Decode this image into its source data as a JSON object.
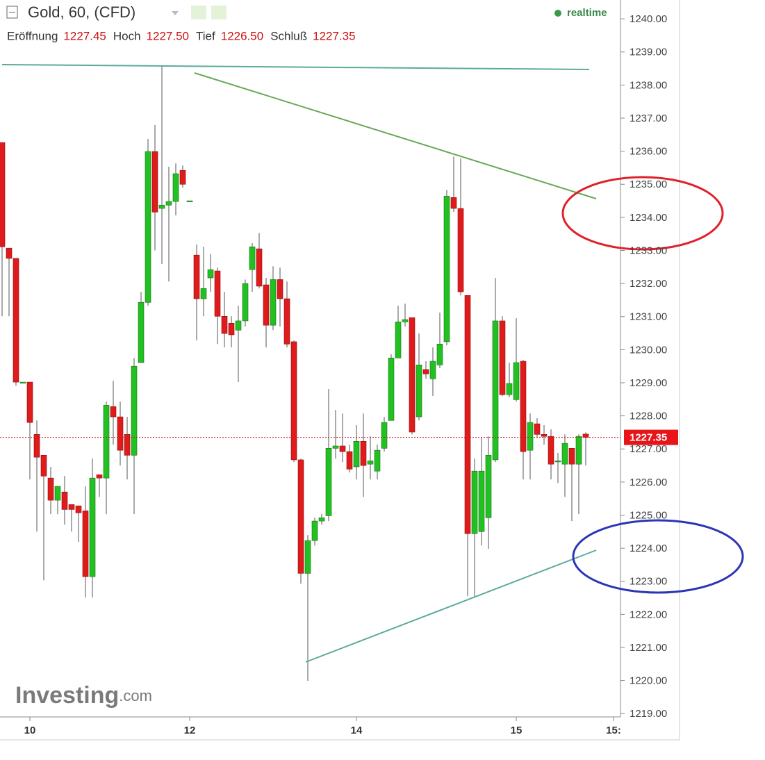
{
  "chart_data": {
    "type": "candlestick",
    "title": "Gold, 60, (CFD)",
    "status": "realtime",
    "ohlc_legend": [
      {
        "name": "Eröffnung",
        "value": 1227.45,
        "label": "1227.45"
      },
      {
        "name": "Hoch",
        "value": 1227.5,
        "label": "1227.50"
      },
      {
        "name": "Tief",
        "value": 1226.5,
        "label": "1226.50"
      },
      {
        "name": "Schluß",
        "value": 1227.35,
        "label": "1227.35"
      }
    ],
    "logo": [
      "Investing",
      ".com"
    ],
    "colors": {
      "up": "#22c122",
      "down": "#e01b1b"
    },
    "open": [
      1236.26,
      1233.07,
      1232.76,
      1229.02,
      1229.02,
      1227.44,
      1226.81,
      1226.12,
      1225.45,
      1225.7,
      1225.32,
      1225.28,
      1225.13,
      1223.14,
      1226.22,
      1226.12,
      1228.28,
      1227.97,
      1227.44,
      1226.81,
      1229.61,
      1231.43,
      1235.99,
      1234.27,
      1234.37,
      1234.48,
      1235.42,
      1234.5,
      1232.86,
      1231.54,
      1232.17,
      1232.38,
      1231.01,
      1230.8,
      1230.59,
      1230.87,
      1232.42,
      1233.05,
      1231.96,
      1230.74,
      1232.12,
      1231.54,
      1230.24,
      1226.67,
      1223.24,
      1224.23,
      1224.82,
      1224.98,
      1227.02,
      1227.09,
      1226.92,
      1226.46,
      1227.23,
      1226.54,
      1226.33,
      1227.02,
      1227.86,
      1229.75,
      1230.84,
      1230.97,
      1227.97,
      1229.4,
      1229.12,
      1229.54,
      1230.24,
      1234.6,
      1234.27,
      1231.64,
      1224.44,
      1224.5,
      1224.92,
      1226.67,
      1230.87,
      1228.64,
      1228.49,
      1229.65,
      1226.96,
      1227.76,
      1227.44,
      1227.38,
      1226.64,
      1226.54,
      1227.02,
      1226.54,
      1227.45
    ],
    "high": [
      1236.26,
      1233.07,
      1232.76,
      1229.02,
      1229.02,
      1227.86,
      1226.81,
      1226.46,
      1225.87,
      1226.18,
      1225.32,
      1225.28,
      1225.87,
      1226.71,
      1226.22,
      1228.43,
      1229.06,
      1228.43,
      1227.97,
      1229.75,
      1231.75,
      1236.37,
      1236.79,
      1238.57,
      1235.53,
      1235.63,
      1235.57,
      1234.5,
      1233.18,
      1233.11,
      1232.9,
      1232.48,
      1231.75,
      1231.01,
      1231.33,
      1232.12,
      1233.22,
      1233.53,
      1232.17,
      1232.52,
      1232.48,
      1232.06,
      1230.28,
      1226.71,
      1224.4,
      1224.92,
      1225.03,
      1228.81,
      1228.18,
      1228.07,
      1227.13,
      1227.72,
      1228.07,
      1227.38,
      1227.13,
      1227.97,
      1229.86,
      1231.33,
      1231.39,
      1230.97,
      1230.49,
      1229.65,
      1230.07,
      1231.12,
      1234.83,
      1235.84,
      1235.78,
      1231.64,
      1226.71,
      1227.34,
      1227.38,
      1232.17,
      1231.01,
      1229.61,
      1230.95,
      1229.69,
      1228.07,
      1227.93,
      1227.72,
      1227.59,
      1226.88,
      1227.44,
      1227.02,
      1227.44,
      1227.5
    ],
    "low": [
      1231.01,
      1231.01,
      1228.91,
      1229.02,
      1226.08,
      1224.5,
      1223.03,
      1225.03,
      1225.03,
      1224.71,
      1224.5,
      1224.19,
      1222.51,
      1222.51,
      1225.55,
      1225.03,
      1227.13,
      1226.5,
      1226.08,
      1225.03,
      1229.61,
      1231.33,
      1233.0,
      1232.59,
      1232.06,
      1234.06,
      1234.9,
      1234.5,
      1230.28,
      1231.01,
      1231.75,
      1230.17,
      1230.07,
      1230.07,
      1229.02,
      1230.7,
      1231.75,
      1231.85,
      1230.07,
      1230.59,
      1230.7,
      1230.07,
      1226.6,
      1222.93,
      1219.99,
      1224.08,
      1224.71,
      1224.82,
      1226.71,
      1226.6,
      1226.29,
      1226.08,
      1225.55,
      1226.08,
      1226.08,
      1226.92,
      1227.86,
      1229.75,
      1230.7,
      1227.44,
      1227.86,
      1229.12,
      1228.6,
      1229.44,
      1230.13,
      1234.16,
      1231.64,
      1222.55,
      1222.51,
      1224.08,
      1223.98,
      1226.6,
      1228.6,
      1228.56,
      1228.43,
      1226.08,
      1226.08,
      1227.34,
      1227.13,
      1226.08,
      1225.97,
      1225.55,
      1224.82,
      1225.03,
      1226.5
    ],
    "close": [
      1233.11,
      1232.76,
      1229.02,
      1229.02,
      1227.8,
      1226.75,
      1226.18,
      1225.45,
      1225.87,
      1225.17,
      1225.17,
      1225.07,
      1223.14,
      1226.12,
      1226.12,
      1228.32,
      1227.97,
      1226.96,
      1226.81,
      1229.5,
      1231.43,
      1235.99,
      1234.16,
      1234.37,
      1234.48,
      1235.32,
      1235.0,
      1234.5,
      1231.54,
      1231.85,
      1232.42,
      1231.01,
      1230.49,
      1230.45,
      1230.87,
      1232.0,
      1233.11,
      1231.92,
      1230.74,
      1232.12,
      1231.54,
      1230.17,
      1226.67,
      1223.24,
      1224.23,
      1224.82,
      1224.92,
      1227.02,
      1227.09,
      1226.92,
      1226.39,
      1227.23,
      1226.5,
      1226.64,
      1226.96,
      1227.8,
      1229.75,
      1230.84,
      1230.91,
      1227.51,
      1229.54,
      1229.27,
      1229.65,
      1230.17,
      1234.64,
      1234.27,
      1231.75,
      1224.44,
      1226.33,
      1226.33,
      1226.81,
      1230.87,
      1228.64,
      1228.98,
      1229.61,
      1226.92,
      1227.8,
      1227.44,
      1227.38,
      1226.54,
      1226.64,
      1227.17,
      1226.54,
      1227.38,
      1227.35
    ],
    "ylim": [
      1218.9,
      1240.57
    ],
    "yticks": [
      {
        "value": 1240,
        "label": "1240.00"
      },
      {
        "value": 1239,
        "label": "1239.00"
      },
      {
        "value": 1238,
        "label": "1238.00"
      },
      {
        "value": 1237,
        "label": "1237.00"
      },
      {
        "value": 1236,
        "label": "1236.00"
      },
      {
        "value": 1235,
        "label": "1235.00"
      },
      {
        "value": 1234,
        "label": "1234.00"
      },
      {
        "value": 1233,
        "label": "1233.00"
      },
      {
        "value": 1232,
        "label": "1232.00"
      },
      {
        "value": 1231,
        "label": "1231.00"
      },
      {
        "value": 1230,
        "label": "1230.00"
      },
      {
        "value": 1229,
        "label": "1229.00"
      },
      {
        "value": 1228,
        "label": "1228.00"
      },
      {
        "value": 1227,
        "label": "1227.00"
      },
      {
        "value": 1226,
        "label": "1226.00"
      },
      {
        "value": 1225,
        "label": "1225.00"
      },
      {
        "value": 1224,
        "label": "1224.00"
      },
      {
        "value": 1223,
        "label": "1223.00"
      },
      {
        "value": 1222,
        "label": "1222.00"
      },
      {
        "value": 1221,
        "label": "1221.00"
      },
      {
        "value": 1220,
        "label": "1220.00"
      },
      {
        "value": 1219,
        "label": "1219.00"
      }
    ],
    "xticks": [
      {
        "value": 4,
        "label": "10"
      },
      {
        "value": 27,
        "label": "12"
      },
      {
        "value": 51,
        "label": "14"
      },
      {
        "value": 74,
        "label": "15"
      },
      {
        "value": 88,
        "label": "15:"
      }
    ]
  }
}
